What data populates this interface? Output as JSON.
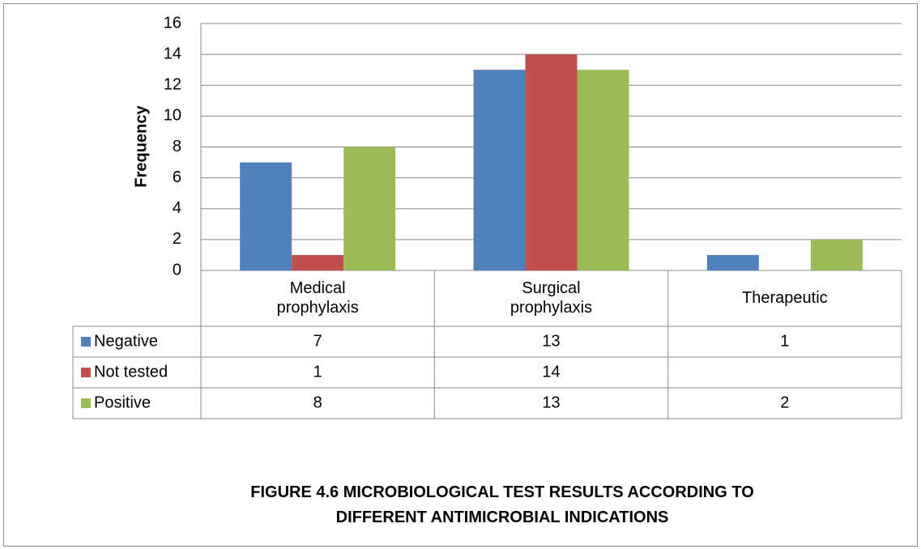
{
  "chart_data": {
    "type": "bar",
    "title": "FIGURE 4.6 MICROBIOLOGICAL TEST RESULTS ACCORDING TO\nDIFFERENT ANTIMICROBIAL INDICATIONS",
    "y_label": "Frequency",
    "categories": [
      "Medical\nprophylaxis",
      "Surgical\nprophylaxis",
      "Therapeutic"
    ],
    "series": [
      {
        "name": "Negative",
        "color": "#4f81bd",
        "values": [
          7,
          13,
          1
        ]
      },
      {
        "name": "Not tested",
        "color": "#c0504d",
        "values": [
          1,
          14,
          null
        ]
      },
      {
        "name": "Positive",
        "color": "#9bbb59",
        "values": [
          8,
          13,
          2
        ]
      }
    ],
    "ylim": [
      0,
      16
    ],
    "yticks": [
      0,
      2,
      4,
      6,
      8,
      10,
      12,
      14,
      16
    ],
    "grid": true
  }
}
